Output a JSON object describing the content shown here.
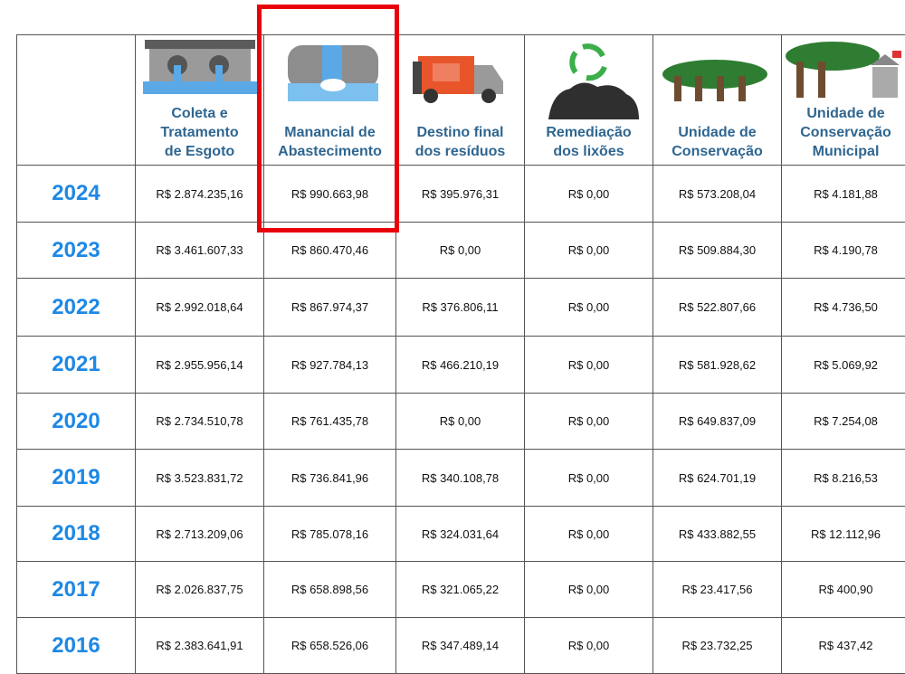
{
  "table": {
    "headers": [
      [
        "Coleta e",
        "Tratamento",
        "de Esgoto"
      ],
      [
        "Manancial de",
        "Abastecimento"
      ],
      [
        "Destino final",
        "dos resíduos"
      ],
      [
        "Remediação",
        "dos lixões"
      ],
      [
        "Unidade de",
        "Conservação"
      ],
      [
        "Unidade de",
        "Conservação",
        "Municipal"
      ]
    ],
    "rows": [
      {
        "year": "2024",
        "values": [
          "R$ 2.874.235,16",
          "R$ 990.663,98",
          "R$ 395.976,31",
          "R$ 0,00",
          "R$ 573.208,04",
          "R$ 4.181,88"
        ]
      },
      {
        "year": "2023",
        "values": [
          "R$ 3.461.607,33",
          "R$ 860.470,46",
          "R$ 0,00",
          "R$ 0,00",
          "R$ 509.884,30",
          "R$ 4.190,78"
        ]
      },
      {
        "year": "2022",
        "values": [
          "R$ 2.992.018,64",
          "R$ 867.974,37",
          "R$ 376.806,11",
          "R$ 0,00",
          "R$ 522.807,66",
          "R$ 4.736,50"
        ]
      },
      {
        "year": "2021",
        "values": [
          "R$ 2.955.956,14",
          "R$ 927.784,13",
          "R$ 466.210,19",
          "R$ 0,00",
          "R$ 581.928,62",
          "R$ 5.069,92"
        ]
      },
      {
        "year": "2020",
        "values": [
          "R$ 2.734.510,78",
          "R$ 761.435,78",
          "R$ 0,00",
          "R$ 0,00",
          "R$ 649.837,09",
          "R$ 7.254,08"
        ]
      },
      {
        "year": "2019",
        "values": [
          "R$ 3.523.831,72",
          "R$ 736.841,96",
          "R$ 340.108,78",
          "R$ 0,00",
          "R$ 624.701,19",
          "R$ 8.216,53"
        ]
      },
      {
        "year": "2018",
        "values": [
          "R$ 2.713.209,06",
          "R$ 785.078,16",
          "R$ 324.031,64",
          "R$ 0,00",
          "R$ 433.882,55",
          "R$ 12.112,96"
        ]
      },
      {
        "year": "2017",
        "values": [
          "R$ 2.026.837,75",
          "R$ 658.898,56",
          "R$ 321.065,22",
          "R$ 0,00",
          "R$ 23.417,56",
          "R$ 400,90"
        ]
      },
      {
        "year": "2016",
        "values": [
          "R$ 2.383.641,91",
          "R$ 658.526,06",
          "R$ 347.489,14",
          "R$ 0,00",
          "R$ 23.732,25",
          "R$ 437,42"
        ]
      }
    ]
  }
}
